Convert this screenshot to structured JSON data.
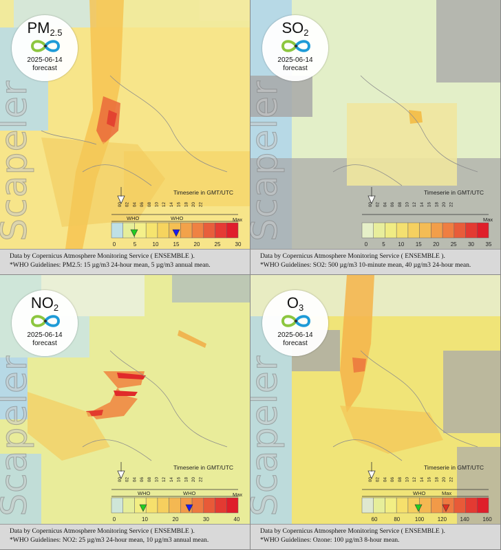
{
  "panels": [
    {
      "pollutant_main": "PM",
      "pollutant_sub": "2.5",
      "date": "2025-06-14",
      "forecast_label": "forecast",
      "watermark": "Scapeler",
      "timeserie_label": "Timeserie in GMT/UTC",
      "hours": [
        "00",
        "02",
        "04",
        "06",
        "08",
        "10",
        "12",
        "14",
        "16",
        "18",
        "20",
        "22"
      ],
      "max_label": "Max",
      "scale_ticks": [
        "0",
        "5",
        "10",
        "15",
        "20",
        "25",
        "30"
      ],
      "scale_colors": [
        "#bfe0e6",
        "#e6ee9a",
        "#f4f08a",
        "#f6e46e",
        "#f6d45e",
        "#f5c053",
        "#f2a24a",
        "#ef8243",
        "#e85e3c",
        "#e53a34",
        "#e01e2c"
      ],
      "who_labels": [
        "WHO",
        "WHO"
      ],
      "who_colors": [
        "#22cc22",
        "#1a1aee"
      ],
      "caption_line1": "Data by Copernicus Atmosphere Monitoring Service ( ENSEMBLE ).",
      "caption_line2": "*WHO Guidelines: PM2.5: 15 µg/m3 24-hour mean, 5 µg/m3 annual mean."
    },
    {
      "pollutant_main": "SO",
      "pollutant_sub": "2",
      "date": "2025-06-14",
      "forecast_label": "forecast",
      "watermark": "Scapeler",
      "timeserie_label": "Timeserie in GMT/UTC",
      "hours": [
        "00",
        "02",
        "04",
        "06",
        "08",
        "10",
        "12",
        "14",
        "16",
        "18",
        "20",
        "22"
      ],
      "max_label": "Max",
      "scale_ticks": [
        "0",
        "5",
        "10",
        "15",
        "20",
        "25",
        "30",
        "35"
      ],
      "scale_colors": [
        "#e6f0c8",
        "#e8ee9c",
        "#f0ec84",
        "#f4e070",
        "#f5d060",
        "#f4bc54",
        "#f29e4a",
        "#ef7e42",
        "#e85c3a",
        "#e33a32",
        "#df1e2a"
      ],
      "who_labels": [],
      "who_colors": [],
      "caption_line1": "Data by Copernicus Atmosphere Monitoring Service ( ENSEMBLE ).",
      "caption_line2": "*WHO Guidelines: SO2: 500 µg/m3 10-minute mean, 40 µg/m3 24-hour mean."
    },
    {
      "pollutant_main": "NO",
      "pollutant_sub": "2",
      "date": "2025-06-14",
      "forecast_label": "forecast",
      "watermark": "Scapeler",
      "timeserie_label": "Timeserie in GMT/UTC",
      "hours": [
        "00",
        "02",
        "04",
        "06",
        "08",
        "10",
        "12",
        "14",
        "16",
        "18",
        "20",
        "22"
      ],
      "max_label": "Max",
      "scale_ticks": [
        "0",
        "10",
        "20",
        "30",
        "40"
      ],
      "scale_colors": [
        "#cfe6d8",
        "#e6ee9a",
        "#f2ee84",
        "#f6e06c",
        "#f6cf5e",
        "#f4b852",
        "#f29a48",
        "#ee7a40",
        "#e85a38",
        "#e33a32",
        "#df1e2a"
      ],
      "who_labels": [
        "WHO",
        "WHO"
      ],
      "who_colors": [
        "#22cc22",
        "#1a1aee"
      ],
      "caption_line1": "Data by Copernicus Atmosphere Monitoring Service ( ENSEMBLE ).",
      "caption_line2": "*WHO Guidelines: NO2: 25 µg/m3 24-hour mean, 10 µg/m3 annual mean."
    },
    {
      "pollutant_main": "O",
      "pollutant_sub": "3",
      "date": "2025-06-14",
      "forecast_label": "forecast",
      "watermark": "Scapeler",
      "timeserie_label": "Timeserie in GMT/UTC",
      "hours": [
        "00",
        "02",
        "04",
        "06",
        "08",
        "10",
        "12",
        "14",
        "16",
        "18",
        "20",
        "22"
      ],
      "max_label": "Max",
      "scale_ticks": [
        "60",
        "80",
        "100",
        "120",
        "140",
        "160"
      ],
      "scale_colors": [
        "#dfe8d0",
        "#e6ee9a",
        "#f2ee84",
        "#f6e06c",
        "#f6cf5e",
        "#f4b852",
        "#f29a48",
        "#ee7a40",
        "#e85a38",
        "#e33a32",
        "#df1e2a"
      ],
      "who_labels": [
        "WHO",
        "Max"
      ],
      "who_colors": [
        "#22cc22",
        "#e03020"
      ],
      "caption_line1": "Data by Copernicus Atmosphere Monitoring Service ( ENSEMBLE ).",
      "caption_line2": "*WHO Guidelines: Ozone: 100 µg/m3 8-hour mean."
    }
  ]
}
